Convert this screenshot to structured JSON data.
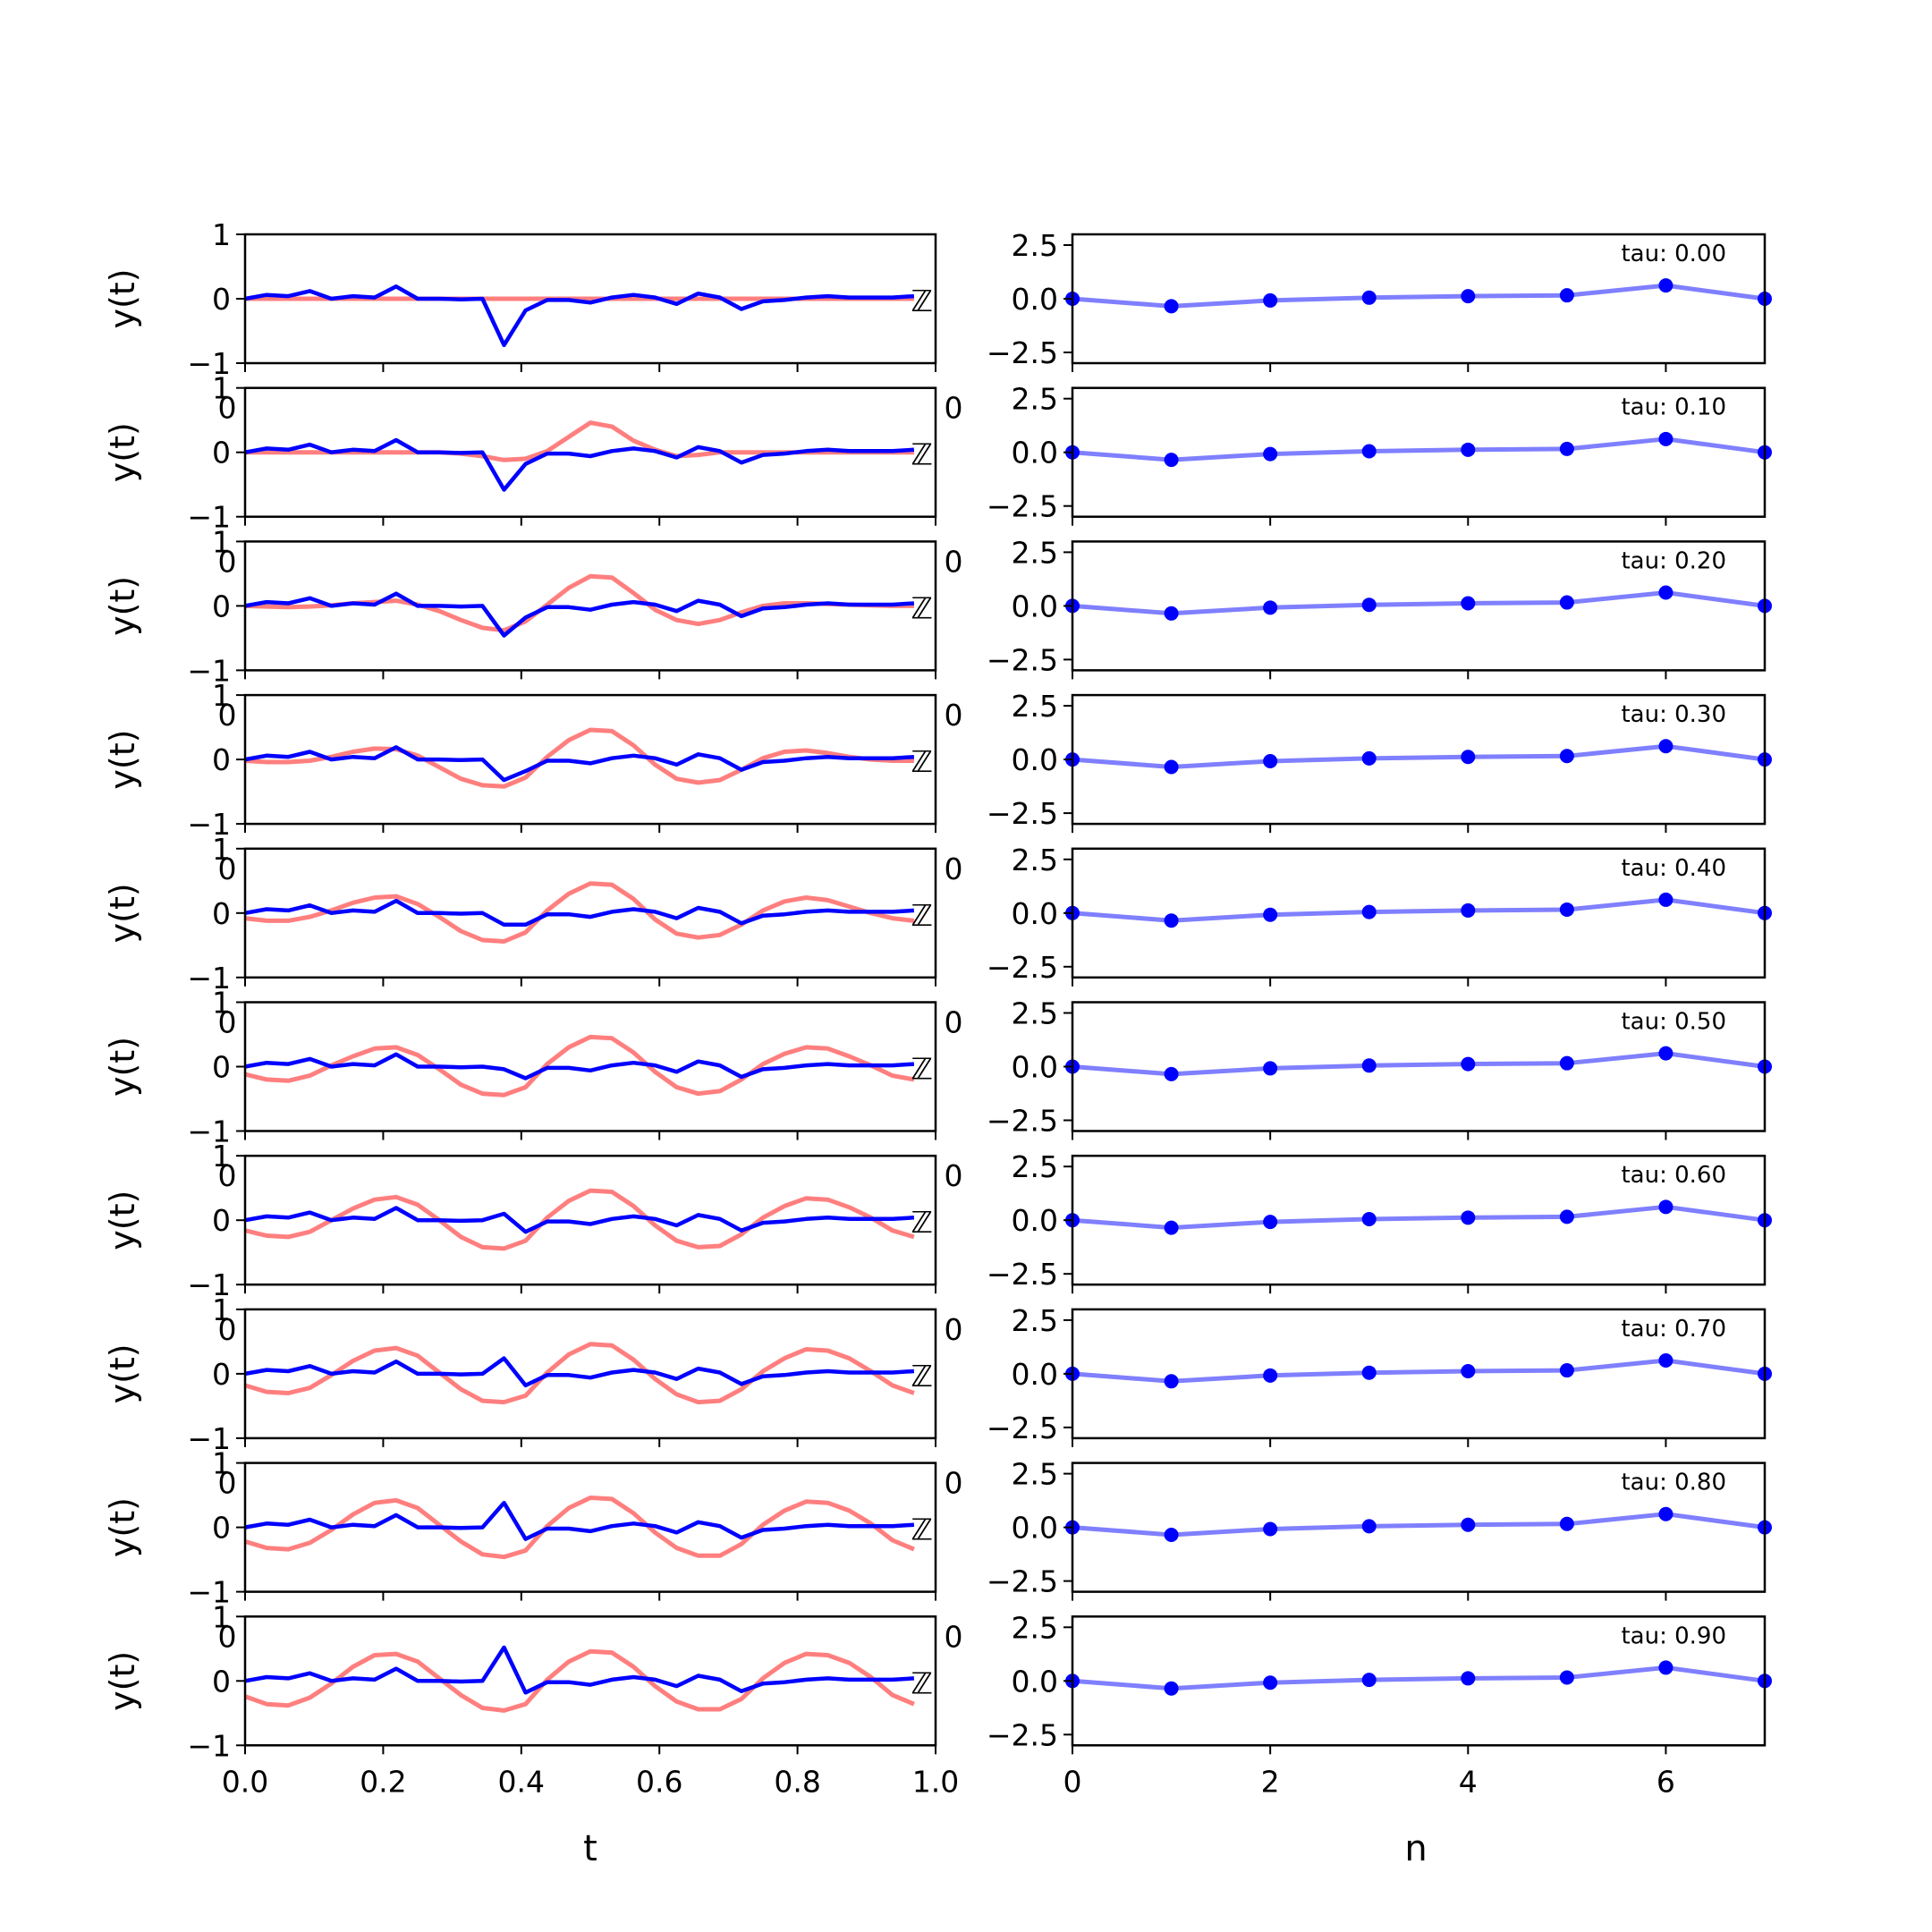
{
  "colors": {
    "signal": "#0000ff",
    "reference": "#ff0000",
    "coeff": "#0000ff",
    "axis": "#000000"
  },
  "chart_data": [
    {
      "type": "line",
      "panel": "left",
      "ylabel": "y(t)",
      "xlabel": "t",
      "xlim": [
        0,
        1
      ],
      "ylim": [
        -1,
        1
      ],
      "xticks": [
        "0.0",
        "0.2",
        "0.4",
        "0.6",
        "0.8",
        "1.0"
      ],
      "yticks": [
        "1",
        "0",
        "−1"
      ],
      "stray_labels": [
        "0",
        "0",
        "ℤ"
      ],
      "grid": false,
      "x": [
        0.0,
        0.03125,
        0.0625,
        0.09375,
        0.125,
        0.15625,
        0.1875,
        0.21875,
        0.25,
        0.28125,
        0.3125,
        0.34375,
        0.375,
        0.40625,
        0.4375,
        0.46875,
        0.5,
        0.53125,
        0.5625,
        0.59375,
        0.625,
        0.65625,
        0.6875,
        0.71875,
        0.75,
        0.78125,
        0.8125,
        0.84375,
        0.875,
        0.90625,
        0.9375,
        0.96875
      ],
      "rows": [
        {
          "tau": "tau: 0.00",
          "signal": [
            0.0,
            0.06,
            0.04,
            0.12,
            0.0,
            0.04,
            0.02,
            0.19,
            0.0,
            0.0,
            -0.01,
            0.0,
            -0.72,
            -0.18,
            -0.02,
            -0.02,
            -0.06,
            0.02,
            0.06,
            0.02,
            -0.08,
            0.08,
            0.02,
            -0.16,
            -0.04,
            -0.02,
            0.02,
            0.04,
            0.02,
            0.02,
            0.02,
            0.04
          ],
          "reference": [
            0.0,
            0.0,
            0.0,
            0.0,
            0.0,
            0.0,
            0.0,
            0.0,
            0.0,
            0.0,
            0.0,
            0.0,
            0.0,
            0.0,
            0.0,
            0.0,
            0.0,
            0.0,
            0.0,
            0.0,
            0.0,
            0.0,
            0.0,
            0.0,
            0.0,
            0.0,
            0.0,
            0.0,
            0.0,
            0.0,
            0.0,
            0.0
          ]
        },
        {
          "tau": "tau: 0.10",
          "signal": [
            0.0,
            0.06,
            0.04,
            0.12,
            0.0,
            0.04,
            0.02,
            0.19,
            0.0,
            0.0,
            -0.01,
            0.0,
            -0.58,
            -0.18,
            -0.02,
            -0.02,
            -0.06,
            0.02,
            0.06,
            0.02,
            -0.08,
            0.08,
            0.02,
            -0.16,
            -0.04,
            -0.02,
            0.02,
            0.04,
            0.02,
            0.02,
            0.02,
            0.04
          ],
          "reference": [
            0.0,
            0.0,
            0.0,
            0.0,
            0.0,
            0.0,
            0.0,
            0.0,
            0.0,
            0.0,
            -0.02,
            -0.06,
            -0.12,
            -0.1,
            0.02,
            0.24,
            0.46,
            0.4,
            0.18,
            0.04,
            -0.06,
            -0.04,
            0.0,
            0.0,
            0.0,
            0.0,
            0.0,
            0.0,
            0.0,
            0.0,
            0.0,
            0.0
          ]
        },
        {
          "tau": "tau: 0.20",
          "signal": [
            0.0,
            0.06,
            0.04,
            0.12,
            0.0,
            0.04,
            0.02,
            0.19,
            0.0,
            0.0,
            -0.01,
            0.0,
            -0.46,
            -0.18,
            -0.02,
            -0.02,
            -0.06,
            0.02,
            0.06,
            0.02,
            -0.08,
            0.08,
            0.02,
            -0.16,
            -0.04,
            -0.02,
            0.02,
            0.04,
            0.02,
            0.02,
            0.02,
            0.04
          ],
          "reference": [
            0.0,
            -0.01,
            -0.02,
            -0.01,
            0.01,
            0.04,
            0.06,
            0.08,
            0.02,
            -0.08,
            -0.22,
            -0.34,
            -0.38,
            -0.24,
            0.02,
            0.28,
            0.46,
            0.44,
            0.2,
            -0.06,
            -0.22,
            -0.28,
            -0.22,
            -0.1,
            0.0,
            0.04,
            0.04,
            0.03,
            0.02,
            0.01,
            0.0,
            0.0
          ]
        },
        {
          "tau": "tau: 0.30",
          "signal": [
            0.0,
            0.06,
            0.04,
            0.12,
            0.0,
            0.04,
            0.02,
            0.19,
            0.0,
            0.0,
            -0.01,
            0.0,
            -0.32,
            -0.18,
            -0.02,
            -0.02,
            -0.06,
            0.02,
            0.06,
            0.02,
            -0.08,
            0.08,
            0.02,
            -0.16,
            -0.04,
            -0.02,
            0.02,
            0.04,
            0.02,
            0.02,
            0.02,
            0.04
          ],
          "reference": [
            -0.02,
            -0.04,
            -0.04,
            -0.02,
            0.04,
            0.12,
            0.17,
            0.16,
            0.06,
            -0.12,
            -0.3,
            -0.4,
            -0.42,
            -0.28,
            0.04,
            0.3,
            0.46,
            0.44,
            0.22,
            -0.08,
            -0.3,
            -0.36,
            -0.32,
            -0.16,
            0.02,
            0.12,
            0.14,
            0.1,
            0.04,
            0.0,
            -0.02,
            -0.02
          ]
        },
        {
          "tau": "tau: 0.40",
          "signal": [
            0.0,
            0.06,
            0.04,
            0.12,
            0.0,
            0.04,
            0.02,
            0.19,
            0.0,
            0.0,
            -0.01,
            0.0,
            -0.18,
            -0.18,
            -0.02,
            -0.02,
            -0.06,
            0.02,
            0.06,
            0.02,
            -0.08,
            0.08,
            0.02,
            -0.16,
            -0.04,
            -0.02,
            0.02,
            0.04,
            0.02,
            0.02,
            0.02,
            0.04
          ],
          "reference": [
            -0.08,
            -0.12,
            -0.12,
            -0.06,
            0.04,
            0.16,
            0.24,
            0.26,
            0.14,
            -0.06,
            -0.28,
            -0.42,
            -0.44,
            -0.3,
            0.04,
            0.3,
            0.46,
            0.44,
            0.22,
            -0.1,
            -0.32,
            -0.38,
            -0.34,
            -0.18,
            0.04,
            0.18,
            0.24,
            0.2,
            0.1,
            0.0,
            -0.08,
            -0.12
          ]
        },
        {
          "tau": "tau: 0.50",
          "signal": [
            0.0,
            0.06,
            0.04,
            0.12,
            0.0,
            0.04,
            0.02,
            0.19,
            0.0,
            0.0,
            -0.01,
            0.0,
            -0.04,
            -0.18,
            -0.02,
            -0.02,
            -0.06,
            0.02,
            0.06,
            0.02,
            -0.08,
            0.08,
            0.02,
            -0.16,
            -0.04,
            -0.02,
            0.02,
            0.04,
            0.02,
            0.02,
            0.02,
            0.04
          ],
          "reference": [
            -0.12,
            -0.2,
            -0.22,
            -0.14,
            0.02,
            0.16,
            0.28,
            0.3,
            0.18,
            -0.04,
            -0.28,
            -0.42,
            -0.44,
            -0.32,
            0.04,
            0.3,
            0.46,
            0.44,
            0.22,
            -0.08,
            -0.32,
            -0.42,
            -0.38,
            -0.2,
            0.04,
            0.2,
            0.3,
            0.28,
            0.16,
            0.02,
            -0.14,
            -0.2
          ]
        },
        {
          "tau": "tau: 0.60",
          "signal": [
            0.0,
            0.06,
            0.04,
            0.12,
            0.0,
            0.04,
            0.02,
            0.19,
            0.0,
            0.0,
            -0.01,
            0.0,
            0.1,
            -0.18,
            -0.02,
            -0.02,
            -0.06,
            0.02,
            0.06,
            0.02,
            -0.08,
            0.08,
            0.02,
            -0.16,
            -0.04,
            -0.02,
            0.02,
            0.04,
            0.02,
            0.02,
            0.02,
            0.04
          ],
          "reference": [
            -0.16,
            -0.24,
            -0.26,
            -0.18,
            0.0,
            0.18,
            0.32,
            0.36,
            0.24,
            0.0,
            -0.26,
            -0.42,
            -0.44,
            -0.32,
            0.04,
            0.3,
            0.46,
            0.44,
            0.22,
            -0.08,
            -0.32,
            -0.42,
            -0.4,
            -0.22,
            0.04,
            0.22,
            0.34,
            0.32,
            0.2,
            0.04,
            -0.16,
            -0.26
          ]
        },
        {
          "tau": "tau: 0.70",
          "signal": [
            0.0,
            0.06,
            0.04,
            0.12,
            0.0,
            0.04,
            0.02,
            0.19,
            0.0,
            0.0,
            -0.01,
            0.0,
            0.24,
            -0.18,
            -0.02,
            -0.02,
            -0.06,
            0.02,
            0.06,
            0.02,
            -0.08,
            0.08,
            0.02,
            -0.16,
            -0.04,
            -0.02,
            0.02,
            0.04,
            0.02,
            0.02,
            0.02,
            0.04
          ],
          "reference": [
            -0.18,
            -0.28,
            -0.3,
            -0.22,
            -0.02,
            0.2,
            0.36,
            0.4,
            0.28,
            0.02,
            -0.24,
            -0.42,
            -0.44,
            -0.34,
            0.02,
            0.3,
            0.46,
            0.44,
            0.22,
            -0.08,
            -0.32,
            -0.44,
            -0.42,
            -0.24,
            0.04,
            0.24,
            0.38,
            0.36,
            0.24,
            0.04,
            -0.18,
            -0.3
          ]
        },
        {
          "tau": "tau: 0.80",
          "signal": [
            0.0,
            0.06,
            0.04,
            0.12,
            0.0,
            0.04,
            0.02,
            0.19,
            0.0,
            0.0,
            -0.01,
            0.0,
            0.38,
            -0.18,
            -0.02,
            -0.02,
            -0.06,
            0.02,
            0.06,
            0.02,
            -0.08,
            0.08,
            0.02,
            -0.16,
            -0.04,
            -0.02,
            0.02,
            0.04,
            0.02,
            0.02,
            0.02,
            0.04
          ],
          "reference": [
            -0.22,
            -0.32,
            -0.34,
            -0.24,
            -0.04,
            0.2,
            0.38,
            0.42,
            0.3,
            0.04,
            -0.22,
            -0.42,
            -0.46,
            -0.36,
            0.02,
            0.3,
            0.46,
            0.44,
            0.22,
            -0.08,
            -0.32,
            -0.44,
            -0.44,
            -0.26,
            0.04,
            0.26,
            0.4,
            0.38,
            0.26,
            0.06,
            -0.2,
            -0.34
          ]
        },
        {
          "tau": "tau: 0.90",
          "signal": [
            0.0,
            0.06,
            0.04,
            0.12,
            0.0,
            0.04,
            0.02,
            0.19,
            0.0,
            0.0,
            -0.01,
            0.0,
            0.52,
            -0.18,
            -0.02,
            -0.02,
            -0.06,
            0.02,
            0.06,
            0.02,
            -0.08,
            0.08,
            0.02,
            -0.16,
            -0.04,
            -0.02,
            0.02,
            0.04,
            0.02,
            0.02,
            0.02,
            0.04
          ],
          "reference": [
            -0.24,
            -0.36,
            -0.38,
            -0.26,
            -0.04,
            0.22,
            0.4,
            0.42,
            0.3,
            0.04,
            -0.22,
            -0.42,
            -0.46,
            -0.36,
            0.02,
            0.3,
            0.46,
            0.44,
            0.22,
            -0.08,
            -0.32,
            -0.44,
            -0.44,
            -0.28,
            0.04,
            0.28,
            0.42,
            0.4,
            0.28,
            0.06,
            -0.22,
            -0.36
          ]
        }
      ]
    },
    {
      "type": "line",
      "panel": "right",
      "xlabel": "n",
      "xlim": [
        0,
        7
      ],
      "ylim": [
        -3,
        3
      ],
      "xticks": [
        "0",
        "2",
        "4",
        "6"
      ],
      "yticks": [
        "2.5",
        "0.0",
        "−2.5"
      ],
      "grid": false,
      "x": [
        0,
        1,
        2,
        3,
        4,
        5,
        6,
        7
      ],
      "rows": [
        {
          "values": [
            0.0,
            -0.35,
            -0.08,
            0.05,
            0.12,
            0.16,
            0.62,
            0.0
          ]
        },
        {
          "values": [
            0.0,
            -0.35,
            -0.08,
            0.05,
            0.12,
            0.16,
            0.62,
            0.0
          ]
        },
        {
          "values": [
            0.0,
            -0.35,
            -0.08,
            0.05,
            0.12,
            0.16,
            0.62,
            0.0
          ]
        },
        {
          "values": [
            0.0,
            -0.35,
            -0.08,
            0.05,
            0.12,
            0.16,
            0.62,
            0.0
          ]
        },
        {
          "values": [
            0.0,
            -0.35,
            -0.08,
            0.05,
            0.12,
            0.16,
            0.62,
            0.0
          ]
        },
        {
          "values": [
            0.0,
            -0.35,
            -0.08,
            0.05,
            0.12,
            0.16,
            0.62,
            0.0
          ]
        },
        {
          "values": [
            0.0,
            -0.35,
            -0.08,
            0.05,
            0.12,
            0.16,
            0.62,
            0.0
          ]
        },
        {
          "values": [
            0.0,
            -0.35,
            -0.08,
            0.05,
            0.12,
            0.16,
            0.62,
            0.0
          ]
        },
        {
          "values": [
            0.0,
            -0.35,
            -0.08,
            0.05,
            0.12,
            0.16,
            0.62,
            0.0
          ]
        },
        {
          "values": [
            0.0,
            -0.35,
            -0.08,
            0.05,
            0.12,
            0.16,
            0.62,
            0.0
          ]
        }
      ]
    }
  ]
}
